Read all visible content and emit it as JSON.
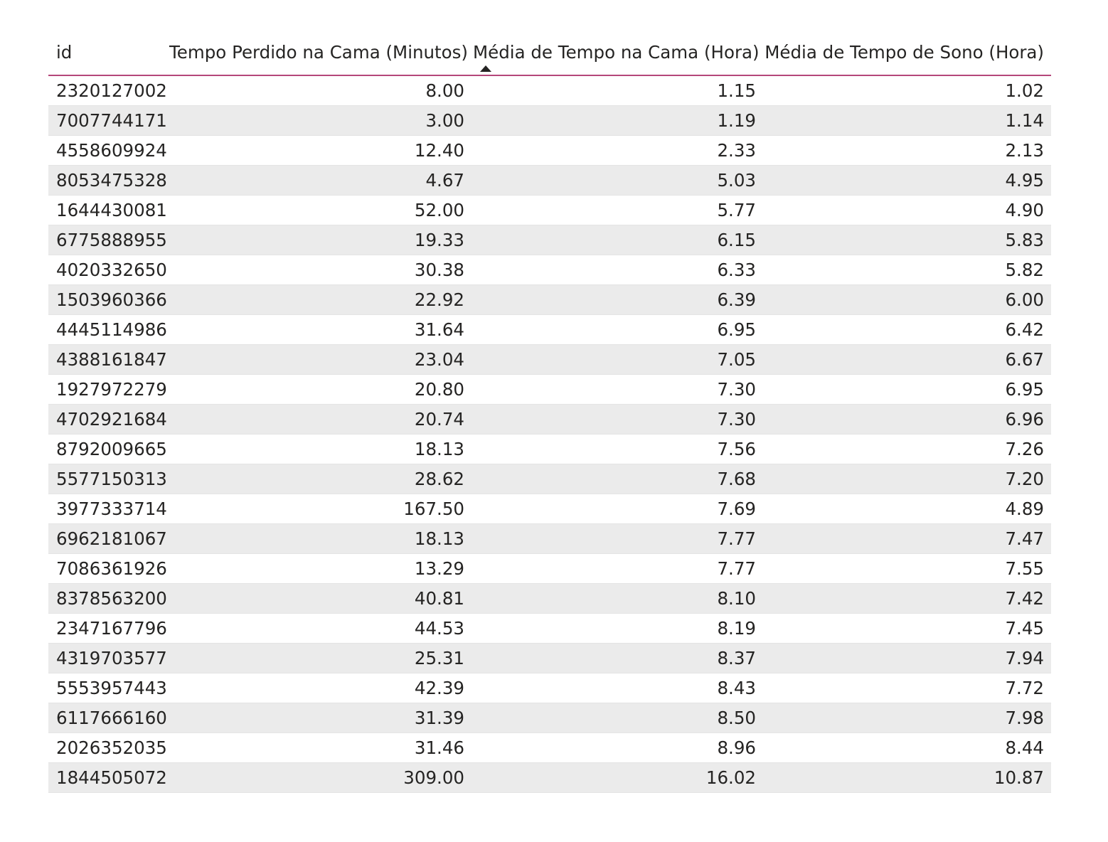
{
  "table": {
    "columns": [
      "id",
      "Tempo Perdido na Cama (Minutos)",
      "Média de Tempo na Cama (Hora)",
      "Média de Tempo de Sono (Hora)"
    ],
    "sort": {
      "column": "Média de Tempo na Cama (Hora)",
      "direction": "ascending"
    },
    "rows": [
      [
        "2320127002",
        "8.00",
        "1.15",
        "1.02"
      ],
      [
        "7007744171",
        "3.00",
        "1.19",
        "1.14"
      ],
      [
        "4558609924",
        "12.40",
        "2.33",
        "2.13"
      ],
      [
        "8053475328",
        "4.67",
        "5.03",
        "4.95"
      ],
      [
        "1644430081",
        "52.00",
        "5.77",
        "4.90"
      ],
      [
        "6775888955",
        "19.33",
        "6.15",
        "5.83"
      ],
      [
        "4020332650",
        "30.38",
        "6.33",
        "5.82"
      ],
      [
        "1503960366",
        "22.92",
        "6.39",
        "6.00"
      ],
      [
        "4445114986",
        "31.64",
        "6.95",
        "6.42"
      ],
      [
        "4388161847",
        "23.04",
        "7.05",
        "6.67"
      ],
      [
        "1927972279",
        "20.80",
        "7.30",
        "6.95"
      ],
      [
        "4702921684",
        "20.74",
        "7.30",
        "6.96"
      ],
      [
        "8792009665",
        "18.13",
        "7.56",
        "7.26"
      ],
      [
        "5577150313",
        "28.62",
        "7.68",
        "7.20"
      ],
      [
        "3977333714",
        "167.50",
        "7.69",
        "4.89"
      ],
      [
        "6962181067",
        "18.13",
        "7.77",
        "7.47"
      ],
      [
        "7086361926",
        "13.29",
        "7.77",
        "7.55"
      ],
      [
        "8378563200",
        "40.81",
        "8.10",
        "7.42"
      ],
      [
        "2347167796",
        "44.53",
        "8.19",
        "7.45"
      ],
      [
        "4319703577",
        "25.31",
        "8.37",
        "7.94"
      ],
      [
        "5553957443",
        "42.39",
        "8.43",
        "7.72"
      ],
      [
        "6117666160",
        "31.39",
        "8.50",
        "7.98"
      ],
      [
        "2026352035",
        "31.46",
        "8.96",
        "8.44"
      ],
      [
        "1844505072",
        "309.00",
        "16.02",
        "10.87"
      ]
    ]
  },
  "colors": {
    "header_border": "#b5477a",
    "stripe": "#ebebeb",
    "text": "#252423"
  }
}
